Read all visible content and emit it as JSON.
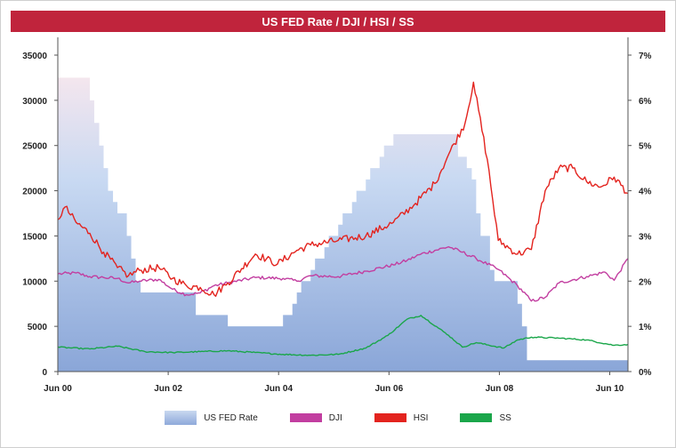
{
  "chart_data": {
    "type": "line",
    "title": "US FED Rate / DJI / HSI / SS",
    "xlabel": "",
    "ylabel_left": "",
    "ylabel_right": "",
    "x_ticks": [
      "Jun 00",
      "Jun 02",
      "Jun 04",
      "Jun 06",
      "Jun 08",
      "Jun 10"
    ],
    "x_range": [
      2000.42,
      2010.75
    ],
    "y_left_ticks": [
      "0",
      "5000",
      "10000",
      "15000",
      "20000",
      "25000",
      "30000",
      "35000"
    ],
    "y_left_range": [
      0,
      35000
    ],
    "y_right_ticks": [
      "0%",
      "1%",
      "2%",
      "3%",
      "4%",
      "5%",
      "6%",
      "7%"
    ],
    "y_right_range": [
      0,
      7
    ],
    "grid": false,
    "legend_position": "bottom",
    "series": [
      {
        "name": "US FED Rate",
        "kind": "step-area",
        "axis": "right",
        "color": "#8ea9da",
        "x": [
          2000.42,
          2001.0,
          2001.08,
          2001.17,
          2001.25,
          2001.33,
          2001.42,
          2001.5,
          2001.67,
          2001.75,
          2001.83,
          2001.92,
          2002.92,
          2003.5,
          2004.5,
          2004.67,
          2004.75,
          2004.83,
          2005.0,
          2005.08,
          2005.25,
          2005.33,
          2005.5,
          2005.58,
          2005.75,
          2005.83,
          2006.0,
          2006.08,
          2006.25,
          2006.33,
          2006.5,
          2007.67,
          2007.83,
          2007.92,
          2008.0,
          2008.08,
          2008.25,
          2008.33,
          2008.75,
          2008.83,
          2008.92,
          2010.75
        ],
        "y": [
          6.5,
          6.0,
          5.5,
          5.0,
          4.5,
          4.0,
          3.75,
          3.5,
          3.0,
          2.5,
          2.0,
          1.75,
          1.25,
          1.0,
          1.25,
          1.5,
          1.75,
          2.0,
          2.25,
          2.5,
          2.75,
          3.0,
          3.25,
          3.5,
          3.75,
          4.0,
          4.25,
          4.5,
          4.75,
          5.0,
          5.25,
          4.75,
          4.5,
          4.25,
          3.5,
          3.0,
          2.25,
          2.0,
          1.5,
          1.0,
          0.25,
          0.25
        ]
      },
      {
        "name": "DJI",
        "kind": "line",
        "axis": "left",
        "color": "#c23ea0",
        "x": [
          2000.42,
          2000.75,
          2001.0,
          2001.25,
          2001.5,
          2001.7,
          2001.9,
          2002.25,
          2002.5,
          2002.75,
          2003.0,
          2003.25,
          2003.5,
          2004.0,
          2004.5,
          2004.75,
          2005.0,
          2005.5,
          2006.0,
          2006.5,
          2006.75,
          2007.0,
          2007.5,
          2007.75,
          2008.0,
          2008.4,
          2008.75,
          2009.0,
          2009.25,
          2009.5,
          2010.0,
          2010.33,
          2010.5,
          2010.75
        ],
        "y": [
          10800,
          10900,
          10500,
          10400,
          10300,
          9800,
          10000,
          10200,
          9100,
          8500,
          8700,
          9500,
          9800,
          10400,
          10300,
          10000,
          10600,
          10500,
          11100,
          11800,
          12300,
          13000,
          13800,
          13200,
          12500,
          11300,
          9500,
          7800,
          8200,
          9800,
          10500,
          11000,
          10100,
          12500
        ]
      },
      {
        "name": "HSI",
        "kind": "line",
        "axis": "left",
        "color": "#e3231e",
        "x": [
          2000.42,
          2000.55,
          2000.75,
          2001.0,
          2001.25,
          2001.5,
          2001.7,
          2001.9,
          2002.25,
          2002.5,
          2002.75,
          2003.0,
          2003.25,
          2003.5,
          2004.0,
          2004.4,
          2004.75,
          2005.0,
          2005.5,
          2006.0,
          2006.5,
          2006.9,
          2007.25,
          2007.5,
          2007.8,
          2007.95,
          2008.2,
          2008.4,
          2008.75,
          2009.0,
          2009.25,
          2009.5,
          2009.75,
          2010.0,
          2010.25,
          2010.5,
          2010.75
        ],
        "y": [
          16800,
          18200,
          16500,
          15300,
          13200,
          11500,
          10600,
          11200,
          11500,
          10300,
          9500,
          9300,
          8500,
          9800,
          13000,
          11900,
          13400,
          14000,
          14500,
          15000,
          16500,
          18600,
          20800,
          24000,
          27500,
          32000,
          23500,
          14500,
          13000,
          13500,
          20000,
          22500,
          22500,
          21000,
          20400,
          21500,
          19700
        ]
      },
      {
        "name": "SS",
        "kind": "line",
        "axis": "left",
        "color": "#1aa64a",
        "x": [
          2000.42,
          2001.0,
          2001.5,
          2002.0,
          2002.5,
          2003.0,
          2003.5,
          2004.0,
          2004.5,
          2005.0,
          2005.5,
          2006.0,
          2006.4,
          2006.75,
          2007.0,
          2007.5,
          2007.75,
          2008.0,
          2008.5,
          2008.75,
          2009.0,
          2009.5,
          2010.0,
          2010.5,
          2010.75
        ],
        "y": [
          2700,
          2500,
          2800,
          2200,
          2100,
          2200,
          2300,
          2100,
          1900,
          1800,
          1900,
          2600,
          4000,
          5800,
          6200,
          4000,
          2700,
          3200,
          2600,
          3500,
          3800,
          3700,
          3500,
          2900,
          3000
        ]
      }
    ]
  }
}
